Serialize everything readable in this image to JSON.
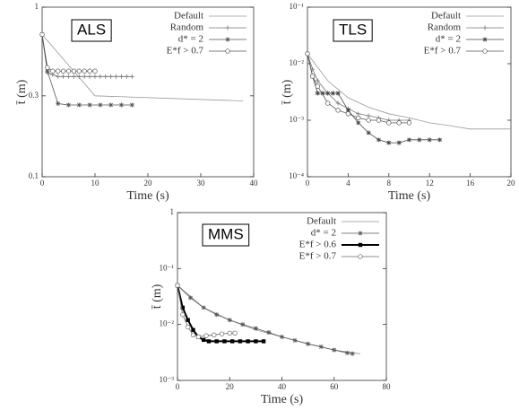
{
  "chart_data": [
    {
      "type": "line",
      "annotation": "ALS",
      "xlabel": "Time (s)",
      "ylabel": "t̄ (m)",
      "log_y": true,
      "xlim": [
        0,
        40
      ],
      "xticks": [
        0,
        10,
        20,
        30,
        40
      ],
      "ylim": [
        0.1,
        1
      ],
      "yticks": [
        0.1,
        0.3,
        1
      ],
      "series": [
        {
          "name": "Default",
          "color": "#999999",
          "marker": "none",
          "x": [
            0,
            10,
            38
          ],
          "values": [
            0.69,
            0.3,
            0.28
          ]
        },
        {
          "name": "Random",
          "color": "#777777",
          "marker": "plus",
          "x": [
            0,
            1,
            2,
            3,
            4,
            5,
            6,
            7,
            8,
            9,
            10,
            11,
            12,
            13,
            14,
            15,
            16,
            17
          ],
          "values": [
            0.69,
            0.41,
            0.4,
            0.39,
            0.39,
            0.39,
            0.39,
            0.39,
            0.39,
            0.39,
            0.39,
            0.39,
            0.39,
            0.39,
            0.39,
            0.39,
            0.39,
            0.39
          ]
        },
        {
          "name": "d* = 2",
          "color": "#555555",
          "marker": "star",
          "x": [
            0,
            1,
            3,
            5,
            7,
            9,
            11,
            13,
            15,
            17
          ],
          "values": [
            0.69,
            0.42,
            0.27,
            0.265,
            0.265,
            0.265,
            0.265,
            0.265,
            0.265,
            0.265
          ]
        },
        {
          "name": "E*f > 0.7",
          "color": "#555555",
          "marker": "circle",
          "x": [
            0,
            1,
            2,
            3,
            4,
            5,
            6,
            7,
            8,
            9,
            10
          ],
          "values": [
            0.69,
            0.44,
            0.42,
            0.42,
            0.42,
            0.42,
            0.42,
            0.42,
            0.42,
            0.42,
            0.42
          ]
        }
      ]
    },
    {
      "type": "line",
      "annotation": "TLS",
      "xlabel": "Time (s)",
      "ylabel": "t̄ (m)",
      "log_y": true,
      "xlim": [
        0,
        20
      ],
      "xticks": [
        0,
        4,
        8,
        12,
        16,
        20
      ],
      "ylim": [
        0.0001,
        0.1
      ],
      "yticks": [
        {
          "value": 0.0001,
          "label": "10⁻⁴"
        },
        {
          "value": 0.001,
          "label": "10⁻³"
        },
        {
          "value": 0.01,
          "label": "10⁻²"
        },
        {
          "value": 0.1,
          "label": "10⁻¹"
        }
      ],
      "series": [
        {
          "name": "Default",
          "color": "#999999",
          "marker": "none",
          "x": [
            0,
            2,
            4,
            6,
            8,
            10,
            12,
            14,
            16,
            18,
            20
          ],
          "values": [
            0.015,
            0.005,
            0.0025,
            0.0017,
            0.0013,
            0.0011,
            0.0009,
            0.0008,
            0.0007,
            0.0007,
            0.0007
          ]
        },
        {
          "name": "Random",
          "color": "#777777",
          "marker": "plus",
          "x": [
            0,
            0.5,
            1,
            2,
            3,
            4,
            5,
            6,
            7,
            8,
            9,
            10
          ],
          "values": [
            0.015,
            0.008,
            0.005,
            0.003,
            0.002,
            0.0016,
            0.0013,
            0.0012,
            0.0011,
            0.001,
            0.001,
            0.001
          ]
        },
        {
          "name": "d* = 2",
          "color": "#444444",
          "marker": "star",
          "x": [
            0,
            0.5,
            1,
            1.5,
            2,
            2.5,
            3,
            4,
            5,
            6,
            7,
            8,
            9,
            10,
            11,
            12,
            13
          ],
          "values": [
            0.015,
            0.006,
            0.003,
            0.003,
            0.003,
            0.003,
            0.003,
            0.0015,
            0.0009,
            0.0006,
            0.00045,
            0.0004,
            0.0004,
            0.00045,
            0.00045,
            0.00045,
            0.00045
          ]
        },
        {
          "name": "E*f > 0.7",
          "color": "#555555",
          "marker": "circle",
          "x": [
            0,
            0.5,
            1,
            2,
            3,
            4,
            5,
            6,
            7,
            8,
            9,
            10
          ],
          "values": [
            0.015,
            0.006,
            0.004,
            0.002,
            0.0015,
            0.0013,
            0.0011,
            0.001,
            0.001,
            0.0009,
            0.0009,
            0.0009
          ]
        }
      ]
    },
    {
      "type": "line",
      "annotation": "MMS",
      "xlabel": "Time (s)",
      "ylabel": "t̄ (m)",
      "log_y": true,
      "xlim": [
        0,
        80
      ],
      "xticks": [
        0,
        20,
        40,
        60,
        80
      ],
      "ylim": [
        0.001,
        1
      ],
      "yticks": [
        {
          "value": 0.001,
          "label": "10⁻³"
        },
        {
          "value": 0.01,
          "label": "10⁻²"
        },
        {
          "value": 0.1,
          "label": "10⁻¹"
        },
        1
      ],
      "series": [
        {
          "name": "Default",
          "color": "#999999",
          "marker": "none",
          "x": [
            0,
            10,
            20,
            30,
            40,
            50,
            60,
            70
          ],
          "values": [
            0.05,
            0.02,
            0.012,
            0.008,
            0.006,
            0.0045,
            0.0035,
            0.003
          ]
        },
        {
          "name": "d* = 2",
          "color": "#555555",
          "marker": "star",
          "x": [
            0,
            5,
            10,
            15,
            20,
            25,
            30,
            35,
            40,
            45,
            50,
            55,
            60,
            65,
            67
          ],
          "values": [
            0.05,
            0.03,
            0.02,
            0.015,
            0.012,
            0.01,
            0.0085,
            0.0072,
            0.006,
            0.0052,
            0.0045,
            0.004,
            0.0035,
            0.0031,
            0.003
          ]
        },
        {
          "name": "E*f > 0.6",
          "color": "#000000",
          "marker": "square",
          "x": [
            0,
            2,
            4,
            6,
            8,
            10,
            12,
            15,
            18,
            21,
            24,
            27,
            30,
            33
          ],
          "values": [
            0.05,
            0.02,
            0.012,
            0.008,
            0.006,
            0.0053,
            0.005,
            0.005,
            0.005,
            0.005,
            0.005,
            0.005,
            0.005,
            0.005
          ]
        },
        {
          "name": "E*f > 0.7",
          "color": "#666666",
          "marker": "circle",
          "x": [
            0,
            2,
            4,
            6,
            8,
            11,
            14,
            17,
            20,
            22
          ],
          "values": [
            0.05,
            0.015,
            0.009,
            0.0065,
            0.006,
            0.0063,
            0.0065,
            0.0068,
            0.007,
            0.007
          ]
        }
      ]
    }
  ]
}
